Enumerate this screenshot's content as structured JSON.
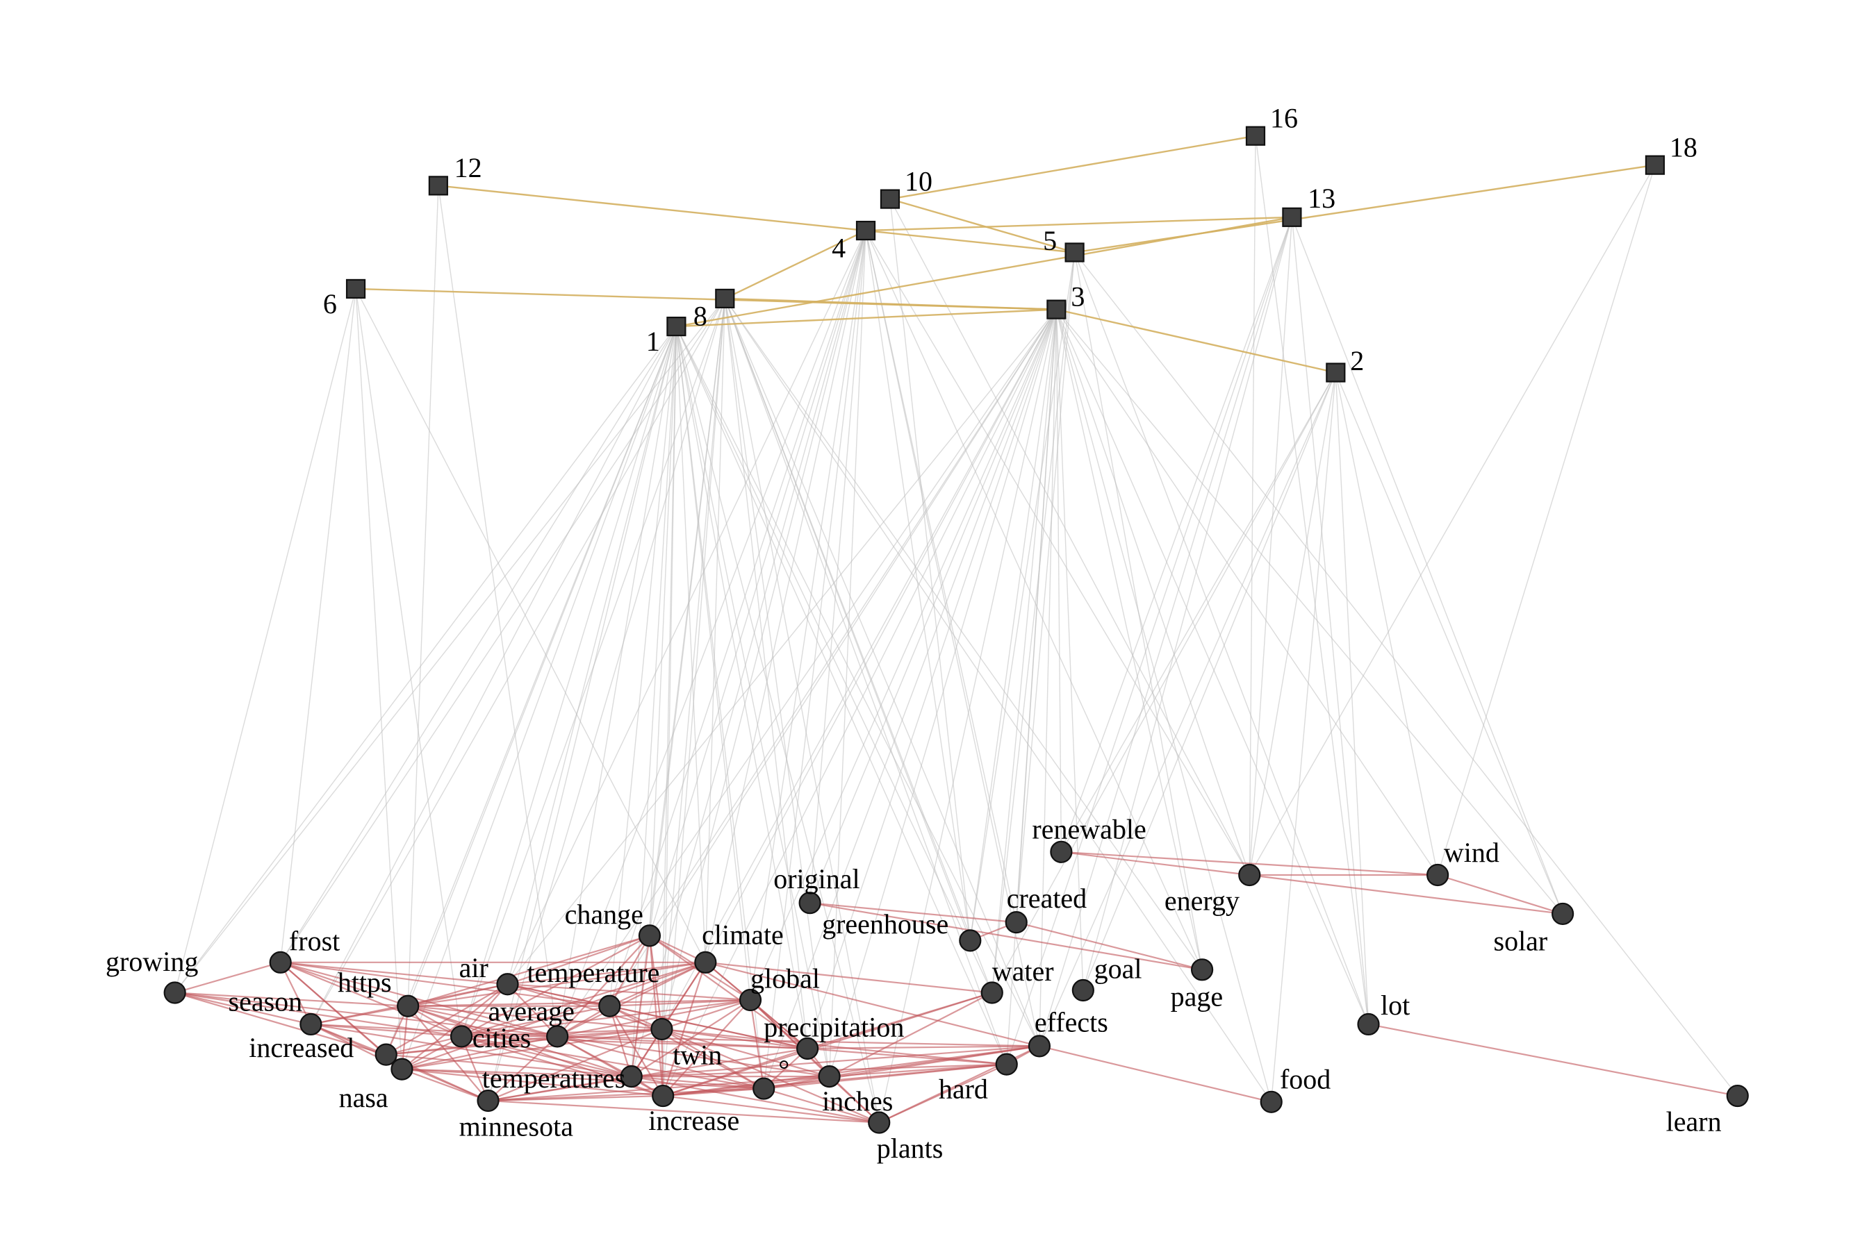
{
  "colors": {
    "background": "#ffffff",
    "node_fill": "#404040",
    "node_stroke": "#111111",
    "doc_doc_edge": "#d4b060",
    "word_word_edge": "#c2555a",
    "doc_word_edge": "#bdbdbd"
  },
  "documents": [
    {
      "id": "d1",
      "label": "1"
    },
    {
      "id": "d2",
      "label": "2"
    },
    {
      "id": "d3",
      "label": "3"
    },
    {
      "id": "d4",
      "label": "4"
    },
    {
      "id": "d5",
      "label": "5"
    },
    {
      "id": "d6",
      "label": "6"
    },
    {
      "id": "d8",
      "label": "8"
    },
    {
      "id": "d10",
      "label": "10"
    },
    {
      "id": "d12",
      "label": "12"
    },
    {
      "id": "d13",
      "label": "13"
    },
    {
      "id": "d16",
      "label": "16"
    },
    {
      "id": "d18",
      "label": "18"
    }
  ],
  "words": [
    {
      "id": "growing",
      "label": "growing"
    },
    {
      "id": "frost",
      "label": "frost"
    },
    {
      "id": "season",
      "label": "season"
    },
    {
      "id": "https",
      "label": "https"
    },
    {
      "id": "air",
      "label": "air"
    },
    {
      "id": "increased",
      "label": "increased"
    },
    {
      "id": "cities",
      "label": "cities"
    },
    {
      "id": "nasa",
      "label": "nasa"
    },
    {
      "id": "minnesota",
      "label": "minnesota"
    },
    {
      "id": "change",
      "label": "change"
    },
    {
      "id": "temperature",
      "label": "temperature"
    },
    {
      "id": "average",
      "label": "average"
    },
    {
      "id": "temperatures",
      "label": "temperatures"
    },
    {
      "id": "increase",
      "label": "increase"
    },
    {
      "id": "climate",
      "label": "climate"
    },
    {
      "id": "twin",
      "label": "twin"
    },
    {
      "id": "global",
      "label": "global"
    },
    {
      "id": "precipitation",
      "label": "precipitation"
    },
    {
      "id": "degree",
      "label": "°"
    },
    {
      "id": "inches",
      "label": "inches"
    },
    {
      "id": "plants",
      "label": "plants"
    },
    {
      "id": "original",
      "label": "original"
    },
    {
      "id": "greenhouse",
      "label": "greenhouse"
    },
    {
      "id": "created",
      "label": "created"
    },
    {
      "id": "hard",
      "label": "hard"
    },
    {
      "id": "effects",
      "label": "effects"
    },
    {
      "id": "water",
      "label": "water"
    },
    {
      "id": "goal",
      "label": "goal"
    },
    {
      "id": "renewable",
      "label": "renewable"
    },
    {
      "id": "energy",
      "label": "energy"
    },
    {
      "id": "page",
      "label": "page"
    },
    {
      "id": "food",
      "label": "food"
    },
    {
      "id": "lot",
      "label": "lot"
    },
    {
      "id": "wind",
      "label": "wind"
    },
    {
      "id": "solar",
      "label": "solar"
    },
    {
      "id": "learn",
      "label": "learn"
    }
  ],
  "doc_doc_edges": [
    [
      "d12",
      "d4"
    ],
    [
      "d10",
      "d16"
    ],
    [
      "d10",
      "d5"
    ],
    [
      "d4",
      "d13"
    ],
    [
      "d4",
      "d5"
    ],
    [
      "d4",
      "d8"
    ],
    [
      "d5",
      "d18"
    ],
    [
      "d6",
      "d3"
    ],
    [
      "d8",
      "d3"
    ],
    [
      "d1",
      "d13"
    ],
    [
      "d1",
      "d3"
    ],
    [
      "d3",
      "d2"
    ]
  ],
  "word_word_edges": [
    [
      "renewable",
      "energy"
    ],
    [
      "renewable",
      "wind"
    ],
    [
      "energy",
      "wind"
    ],
    [
      "energy",
      "solar"
    ],
    [
      "wind",
      "solar"
    ],
    [
      "original",
      "created"
    ],
    [
      "original",
      "page"
    ],
    [
      "greenhouse",
      "created"
    ],
    [
      "created",
      "page"
    ],
    [
      "lot",
      "learn"
    ],
    [
      "effects",
      "food"
    ],
    [
      "growing",
      "frost"
    ],
    [
      "growing",
      "season"
    ],
    [
      "growing",
      "https"
    ],
    [
      "growing",
      "increased"
    ],
    [
      "growing",
      "cities"
    ],
    [
      "growing",
      "average"
    ],
    [
      "frost",
      "season"
    ],
    [
      "frost",
      "https"
    ],
    [
      "frost",
      "air"
    ],
    [
      "frost",
      "increased"
    ],
    [
      "frost",
      "cities"
    ],
    [
      "frost",
      "temperature"
    ],
    [
      "frost",
      "average"
    ],
    [
      "frost",
      "climate"
    ],
    [
      "frost",
      "nasa"
    ],
    [
      "season",
      "https"
    ],
    [
      "season",
      "increased"
    ],
    [
      "season",
      "cities"
    ],
    [
      "season",
      "nasa"
    ],
    [
      "season",
      "average"
    ],
    [
      "season",
      "temperatures"
    ],
    [
      "season",
      "minnesota"
    ],
    [
      "season",
      "air"
    ],
    [
      "https",
      "air"
    ],
    [
      "https",
      "increased"
    ],
    [
      "https",
      "cities"
    ],
    [
      "https",
      "nasa"
    ],
    [
      "https",
      "change"
    ],
    [
      "https",
      "temperature"
    ],
    [
      "https",
      "average"
    ],
    [
      "https",
      "climate"
    ],
    [
      "https",
      "global"
    ],
    [
      "https",
      "twin"
    ],
    [
      "https",
      "minnesota"
    ],
    [
      "https",
      "temperatures"
    ],
    [
      "https",
      "increase"
    ],
    [
      "air",
      "cities"
    ],
    [
      "air",
      "change"
    ],
    [
      "air",
      "temperature"
    ],
    [
      "air",
      "average"
    ],
    [
      "air",
      "climate"
    ],
    [
      "air",
      "global"
    ],
    [
      "air",
      "twin"
    ],
    [
      "air",
      "precipitation"
    ],
    [
      "air",
      "increased"
    ],
    [
      "air",
      "nasa"
    ],
    [
      "increased",
      "cities"
    ],
    [
      "increased",
      "nasa"
    ],
    [
      "increased",
      "average"
    ],
    [
      "increased",
      "temperatures"
    ],
    [
      "increased",
      "minnesota"
    ],
    [
      "increased",
      "twin"
    ],
    [
      "cities",
      "nasa"
    ],
    [
      "cities",
      "change"
    ],
    [
      "cities",
      "temperature"
    ],
    [
      "cities",
      "average"
    ],
    [
      "cities",
      "temperatures"
    ],
    [
      "cities",
      "minnesota"
    ],
    [
      "cities",
      "twin"
    ],
    [
      "cities",
      "climate"
    ],
    [
      "cities",
      "global"
    ],
    [
      "cities",
      "precipitation"
    ],
    [
      "cities",
      "increase"
    ],
    [
      "cities",
      "degree"
    ],
    [
      "nasa",
      "minnesota"
    ],
    [
      "nasa",
      "temperatures"
    ],
    [
      "nasa",
      "increase"
    ],
    [
      "nasa",
      "average"
    ],
    [
      "nasa",
      "twin"
    ],
    [
      "nasa",
      "degree"
    ],
    [
      "nasa",
      "climate"
    ],
    [
      "minnesota",
      "temperatures"
    ],
    [
      "minnesota",
      "increase"
    ],
    [
      "minnesota",
      "precipitation"
    ],
    [
      "minnesota",
      "degree"
    ],
    [
      "minnesota",
      "inches"
    ],
    [
      "minnesota",
      "plants"
    ],
    [
      "minnesota",
      "twin"
    ],
    [
      "minnesota",
      "average"
    ],
    [
      "change",
      "temperature"
    ],
    [
      "change",
      "average"
    ],
    [
      "change",
      "climate"
    ],
    [
      "change",
      "global"
    ],
    [
      "change",
      "twin"
    ],
    [
      "change",
      "precipitation"
    ],
    [
      "change",
      "temperatures"
    ],
    [
      "change",
      "increase"
    ],
    [
      "temperature",
      "average"
    ],
    [
      "temperature",
      "climate"
    ],
    [
      "temperature",
      "global"
    ],
    [
      "temperature",
      "twin"
    ],
    [
      "temperature",
      "precipitation"
    ],
    [
      "temperature",
      "degree"
    ],
    [
      "temperature",
      "increase"
    ],
    [
      "temperature",
      "temperatures"
    ],
    [
      "average",
      "climate"
    ],
    [
      "average",
      "global"
    ],
    [
      "average",
      "twin"
    ],
    [
      "average",
      "precipitation"
    ],
    [
      "average",
      "temperatures"
    ],
    [
      "average",
      "increase"
    ],
    [
      "average",
      "degree"
    ],
    [
      "average",
      "inches"
    ],
    [
      "average",
      "effects"
    ],
    [
      "climate",
      "global"
    ],
    [
      "climate",
      "twin"
    ],
    [
      "climate",
      "precipitation"
    ],
    [
      "climate",
      "effects"
    ],
    [
      "climate",
      "water"
    ],
    [
      "climate",
      "temperatures"
    ],
    [
      "climate",
      "increase"
    ],
    [
      "global",
      "twin"
    ],
    [
      "global",
      "precipitation"
    ],
    [
      "global",
      "degree"
    ],
    [
      "global",
      "inches"
    ],
    [
      "global",
      "increase"
    ],
    [
      "global",
      "temperatures"
    ],
    [
      "global",
      "plants"
    ],
    [
      "twin",
      "precipitation"
    ],
    [
      "twin",
      "temperatures"
    ],
    [
      "twin",
      "increase"
    ],
    [
      "twin",
      "degree"
    ],
    [
      "twin",
      "inches"
    ],
    [
      "twin",
      "plants"
    ],
    [
      "twin",
      "hard"
    ],
    [
      "precipitation",
      "water"
    ],
    [
      "precipitation",
      "effects"
    ],
    [
      "precipitation",
      "degree"
    ],
    [
      "precipitation",
      "inches"
    ],
    [
      "precipitation",
      "increase"
    ],
    [
      "precipitation",
      "hard"
    ],
    [
      "temperatures",
      "increase"
    ],
    [
      "temperatures",
      "degree"
    ],
    [
      "temperatures",
      "inches"
    ],
    [
      "temperatures",
      "plants"
    ],
    [
      "temperatures",
      "hard"
    ],
    [
      "temperatures",
      "effects"
    ],
    [
      "increase",
      "degree"
    ],
    [
      "increase",
      "inches"
    ],
    [
      "increase",
      "plants"
    ],
    [
      "increase",
      "hard"
    ],
    [
      "increase",
      "effects"
    ],
    [
      "increase",
      "water"
    ],
    [
      "degree",
      "inches"
    ],
    [
      "degree",
      "plants"
    ],
    [
      "degree",
      "hard"
    ],
    [
      "degree",
      "effects"
    ],
    [
      "inches",
      "plants"
    ],
    [
      "inches",
      "hard"
    ],
    [
      "inches",
      "effects"
    ],
    [
      "inches",
      "water"
    ],
    [
      "plants",
      "hard"
    ],
    [
      "plants",
      "effects"
    ],
    [
      "hard",
      "effects"
    ]
  ],
  "doc_word_edges": [
    [
      "d1",
      "growing"
    ],
    [
      "d1",
      "https"
    ],
    [
      "d1",
      "air"
    ],
    [
      "d1",
      "cities"
    ],
    [
      "d1",
      "nasa"
    ],
    [
      "d1",
      "minnesota"
    ],
    [
      "d1",
      "change"
    ],
    [
      "d1",
      "temperature"
    ],
    [
      "d1",
      "average"
    ],
    [
      "d1",
      "climate"
    ],
    [
      "d1",
      "twin"
    ],
    [
      "d1",
      "global"
    ],
    [
      "d1",
      "precipitation"
    ],
    [
      "d1",
      "temperatures"
    ],
    [
      "d1",
      "increase"
    ],
    [
      "d1",
      "degree"
    ],
    [
      "d1",
      "inches"
    ],
    [
      "d1",
      "plants"
    ],
    [
      "d1",
      "increased"
    ],
    [
      "d1",
      "frost"
    ],
    [
      "d1",
      "season"
    ],
    [
      "d1",
      "effects"
    ],
    [
      "d1",
      "water"
    ],
    [
      "d1",
      "hard"
    ],
    [
      "d8",
      "frost"
    ],
    [
      "d8",
      "season"
    ],
    [
      "d8",
      "growing"
    ],
    [
      "d8",
      "minnesota"
    ],
    [
      "d8",
      "temperatures"
    ],
    [
      "d8",
      "twin"
    ],
    [
      "d8",
      "increase"
    ],
    [
      "d8",
      "plants"
    ],
    [
      "d8",
      "hard"
    ],
    [
      "d8",
      "inches"
    ],
    [
      "d8",
      "climate"
    ],
    [
      "d8",
      "change"
    ],
    [
      "d8",
      "precipitation"
    ],
    [
      "d8",
      "cities"
    ],
    [
      "d8",
      "water"
    ],
    [
      "d8",
      "effects"
    ],
    [
      "d8",
      "greenhouse"
    ],
    [
      "d8",
      "page"
    ],
    [
      "d8",
      "food"
    ],
    [
      "d3",
      "change"
    ],
    [
      "d3",
      "climate"
    ],
    [
      "d3",
      "global"
    ],
    [
      "d3",
      "temperature"
    ],
    [
      "d3",
      "average"
    ],
    [
      "d3",
      "twin"
    ],
    [
      "d3",
      "precipitation"
    ],
    [
      "d3",
      "effects"
    ],
    [
      "d3",
      "water"
    ],
    [
      "d3",
      "goal"
    ],
    [
      "d3",
      "renewable"
    ],
    [
      "d3",
      "energy"
    ],
    [
      "d3",
      "created"
    ],
    [
      "d3",
      "original"
    ],
    [
      "d3",
      "greenhouse"
    ],
    [
      "d3",
      "hard"
    ],
    [
      "d3",
      "plants"
    ],
    [
      "d3",
      "food"
    ],
    [
      "d3",
      "page"
    ],
    [
      "d3",
      "increase"
    ],
    [
      "d3",
      "degree"
    ],
    [
      "d3",
      "inches"
    ],
    [
      "d3",
      "air"
    ],
    [
      "d3",
      "solar"
    ],
    [
      "d3",
      "wind"
    ],
    [
      "d3",
      "lot"
    ],
    [
      "d4",
      "change"
    ],
    [
      "d4",
      "climate"
    ],
    [
      "d4",
      "global"
    ],
    [
      "d4",
      "average"
    ],
    [
      "d4",
      "temperature"
    ],
    [
      "d4",
      "twin"
    ],
    [
      "d4",
      "air"
    ],
    [
      "d4",
      "temperatures"
    ],
    [
      "d4",
      "original"
    ],
    [
      "d4",
      "greenhouse"
    ],
    [
      "d4",
      "created"
    ],
    [
      "d4",
      "page"
    ],
    [
      "d4",
      "energy"
    ],
    [
      "d4",
      "effects"
    ],
    [
      "d4",
      "degree"
    ],
    [
      "d4",
      "inches"
    ],
    [
      "d2",
      "renewable"
    ],
    [
      "d2",
      "energy"
    ],
    [
      "d2",
      "wind"
    ],
    [
      "d2",
      "solar"
    ],
    [
      "d2",
      "goal"
    ],
    [
      "d2",
      "lot"
    ],
    [
      "d2",
      "food"
    ],
    [
      "d2",
      "effects"
    ],
    [
      "d2",
      "water"
    ],
    [
      "d6",
      "growing"
    ],
    [
      "d6",
      "frost"
    ],
    [
      "d6",
      "nasa"
    ],
    [
      "d6",
      "cities"
    ],
    [
      "d6",
      "climate"
    ],
    [
      "d12",
      "https"
    ],
    [
      "d12",
      "average"
    ],
    [
      "d5",
      "page"
    ],
    [
      "d5",
      "learn"
    ],
    [
      "d5",
      "lot"
    ],
    [
      "d5",
      "created"
    ],
    [
      "d5",
      "greenhouse"
    ],
    [
      "d5",
      "water"
    ],
    [
      "d10",
      "greenhouse"
    ],
    [
      "d10",
      "energy"
    ],
    [
      "d13",
      "renewable"
    ],
    [
      "d13",
      "energy"
    ],
    [
      "d13",
      "solar"
    ],
    [
      "d13",
      "hard"
    ],
    [
      "d13",
      "goal"
    ],
    [
      "d13",
      "lot"
    ],
    [
      "d13",
      "effects"
    ],
    [
      "d16",
      "energy"
    ],
    [
      "d16",
      "lot"
    ],
    [
      "d18",
      "energy"
    ],
    [
      "d18",
      "wind"
    ]
  ]
}
